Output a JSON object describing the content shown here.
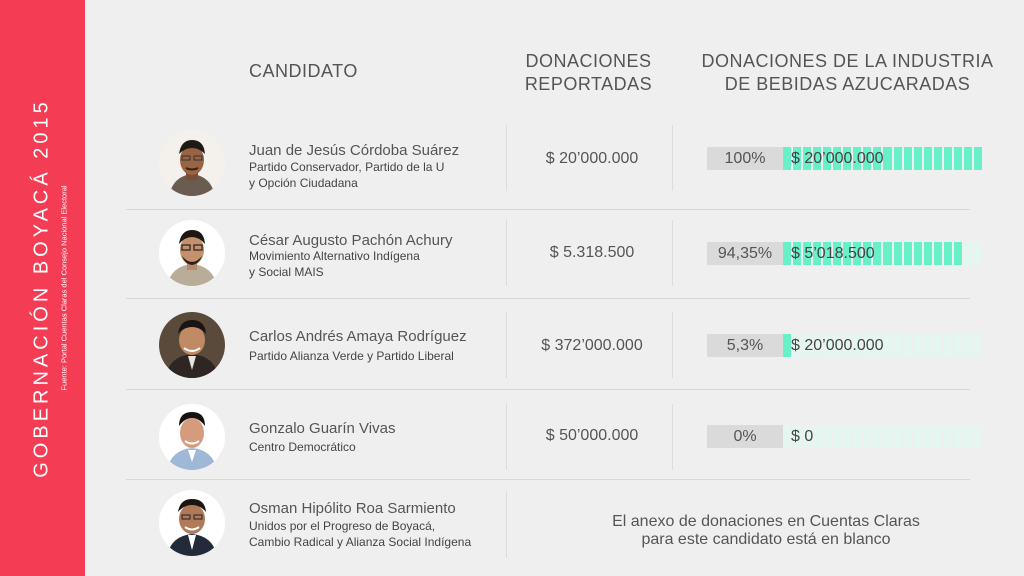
{
  "sidebar": {
    "title": "GOBERNACIÓN BOYACÁ 2015",
    "source": "Fuente: Portal Cuentas Claras del Consejo Nacional Electoral"
  },
  "headers": {
    "candidate": "CANDIDATO",
    "donations": [
      "DONACIONES",
      "REPORTADAS"
    ],
    "industry": [
      "DONACIONES DE LA INDUSTRIA",
      "DE BEBIDAS AZUCARADAS"
    ]
  },
  "colors": {
    "sidebar": "#f43d55",
    "bar_filled": "#68f0c8",
    "bar_empty": "#e3f7f0",
    "pct_box": "#dadada"
  },
  "candidates": [
    {
      "name": "Juan de Jesús Córdoba Suárez",
      "party": [
        "Partido Conservador, Partido de la U",
        "y Opción Ciudadana"
      ],
      "donations": "$ 20’000.000",
      "percent": "100%",
      "percent_value": 100,
      "industry_amount": "$ 20’000.000"
    },
    {
      "name": "César Augusto Pachón Achury",
      "party": [
        "Movimiento Alternativo Indígena",
        "y Social MAIS"
      ],
      "donations": "$ 5.318.500",
      "percent": "94,35%",
      "percent_value": 94.35,
      "industry_amount": "$ 5’018.500"
    },
    {
      "name": "Carlos Andrés Amaya Rodríguez",
      "party": [
        "Partido Alianza Verde y Partido Liberal"
      ],
      "donations": "$ 372’000.000",
      "percent": "5,3%",
      "percent_value": 5.3,
      "industry_amount": "$ 20’000.000"
    },
    {
      "name": "Gonzalo Guarín Vivas",
      "party": [
        "Centro Democrático"
      ],
      "donations": "$ 50’000.000",
      "percent": "0%",
      "percent_value": 0,
      "industry_amount": "$ 0"
    },
    {
      "name": "Osman Hipólito Roa Sarmiento",
      "party": [
        "Unidos por el Progreso de Boyacá,",
        "Cambio Radical y Alianza Social Indígena"
      ],
      "note": [
        "El anexo de donaciones en Cuentas Claras",
        "para este candidato está en blanco"
      ]
    }
  ]
}
